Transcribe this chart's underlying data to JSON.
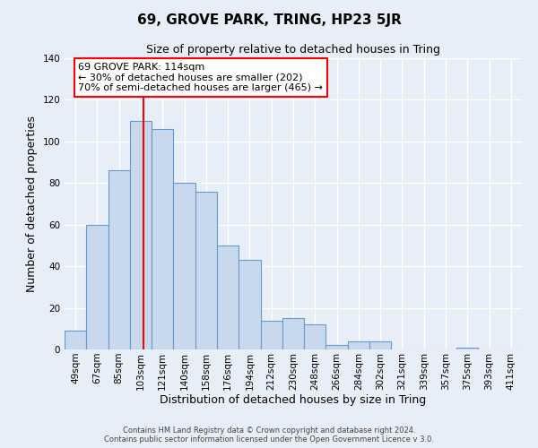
{
  "title": "69, GROVE PARK, TRING, HP23 5JR",
  "subtitle": "Size of property relative to detached houses in Tring",
  "xlabel": "Distribution of detached houses by size in Tring",
  "ylabel": "Number of detached properties",
  "footer_line1": "Contains HM Land Registry data © Crown copyright and database right 2024.",
  "footer_line2": "Contains public sector information licensed under the Open Government Licence v 3.0.",
  "bin_labels": [
    "49sqm",
    "67sqm",
    "85sqm",
    "103sqm",
    "121sqm",
    "140sqm",
    "158sqm",
    "176sqm",
    "194sqm",
    "212sqm",
    "230sqm",
    "248sqm",
    "266sqm",
    "284sqm",
    "302sqm",
    "321sqm",
    "339sqm",
    "357sqm",
    "375sqm",
    "393sqm",
    "411sqm"
  ],
  "bar_values": [
    9,
    60,
    86,
    110,
    106,
    80,
    76,
    50,
    43,
    14,
    15,
    12,
    2,
    4,
    4,
    0,
    0,
    0,
    1,
    0,
    0
  ],
  "bar_color": "#c9d9ed",
  "bar_edge_color": "#6699cc",
  "background_color": "#e8eef7",
  "grid_color": "#ffffff",
  "ylim": [
    0,
    140
  ],
  "yticks": [
    0,
    20,
    40,
    60,
    80,
    100,
    120,
    140
  ],
  "annotation_text_line1": "69 GROVE PARK: 114sqm",
  "annotation_text_line2": "← 30% of detached houses are smaller (202)",
  "annotation_text_line3": "70% of semi-detached houses are larger (465) →",
  "title_fontsize": 11,
  "subtitle_fontsize": 9,
  "label_fontsize": 9,
  "tick_fontsize": 7.5,
  "annot_fontsize": 8,
  "footer_fontsize": 6
}
